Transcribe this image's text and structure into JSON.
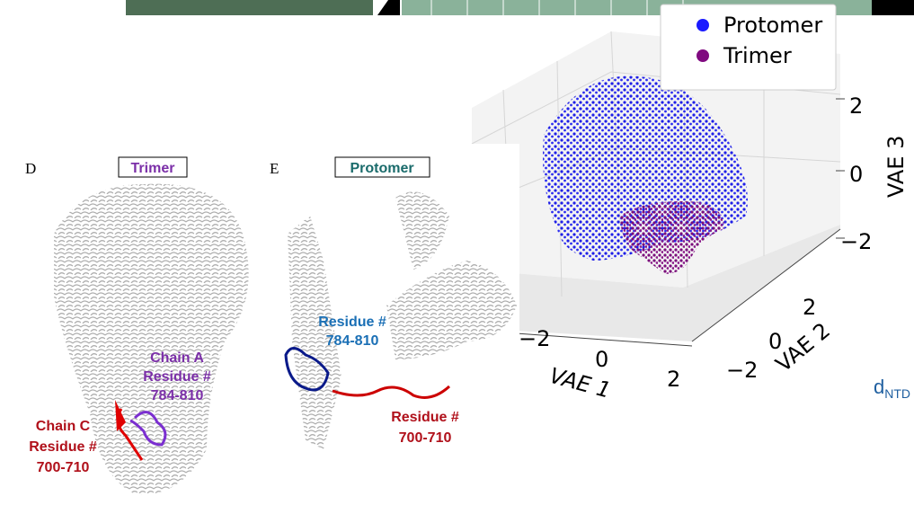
{
  "panel_d": {
    "letter": "D",
    "tag": "Trimer",
    "label_a": [
      "Chain A",
      "Residue #",
      "784-810"
    ],
    "label_c": [
      "Chain C",
      "Residue #",
      "700-710"
    ]
  },
  "panel_e": {
    "letter": "E",
    "tag": "Protomer",
    "label_top": [
      "Residue #",
      "784-810"
    ],
    "label_bottom": [
      "Residue #",
      "700-710"
    ]
  },
  "plot": {
    "legend": [
      "Protomer",
      "Trimer"
    ],
    "axes": {
      "x": {
        "label": "VAE 1",
        "ticks": [
          "−2",
          "0",
          "2"
        ]
      },
      "y": {
        "label": "VAE 2",
        "ticks": [
          "−2",
          "0",
          "2"
        ]
      },
      "z": {
        "label": "VAE 3",
        "ticks": [
          "2",
          "0",
          "−2"
        ]
      }
    }
  },
  "side_label": {
    "main": "d",
    "sub": "NTD"
  }
}
